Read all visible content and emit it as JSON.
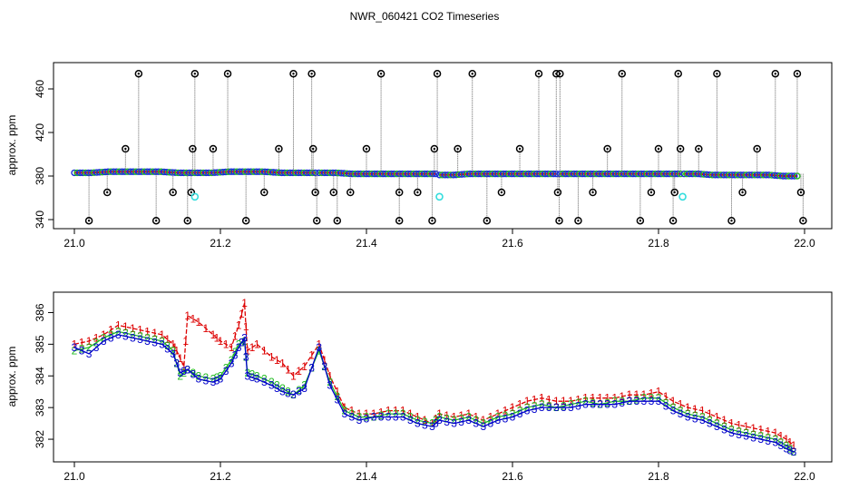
{
  "title": "NWR_060421  CO2 Timeseries",
  "chart_data": [
    {
      "type": "scatter",
      "name": "top-panel",
      "ylabel": "approx. ppm",
      "xlim": [
        21.0,
        22.0
      ],
      "ylim": [
        335,
        480
      ],
      "xticks": [
        "21.0",
        "21.2",
        "21.4",
        "21.6",
        "21.8",
        "22.0"
      ],
      "yticks": [
        "340",
        "380",
        "420",
        "460"
      ],
      "baseline_segments": [
        {
          "x0": 21.0,
          "x1": 21.33,
          "values": [
            383,
            383,
            384,
            384,
            384,
            384,
            383,
            383,
            383,
            384,
            384,
            384,
            383,
            383,
            383
          ]
        },
        {
          "x0": 21.335,
          "x1": 21.495,
          "values": [
            383,
            383,
            382,
            382,
            382,
            382,
            382,
            382
          ]
        },
        {
          "x0": 21.5,
          "x1": 21.66,
          "values": [
            381,
            381,
            382,
            382,
            382,
            382,
            382,
            382,
            382
          ]
        },
        {
          "x0": 21.665,
          "x1": 21.83,
          "values": [
            382,
            382,
            382,
            382,
            382,
            382,
            382,
            382,
            382
          ]
        },
        {
          "x0": 21.835,
          "x1": 21.99,
          "values": [
            382,
            382,
            381,
            381,
            381,
            381,
            381,
            380,
            380
          ]
        }
      ],
      "outliers": [
        [
          21.02,
          339
        ],
        [
          21.045,
          365
        ],
        [
          21.07,
          405
        ],
        [
          21.088,
          474
        ],
        [
          21.112,
          339
        ],
        [
          21.135,
          365
        ],
        [
          21.155,
          339
        ],
        [
          21.16,
          365
        ],
        [
          21.162,
          405
        ],
        [
          21.165,
          474
        ],
        [
          21.19,
          405
        ],
        [
          21.21,
          474
        ],
        [
          21.235,
          339
        ],
        [
          21.26,
          365
        ],
        [
          21.28,
          405
        ],
        [
          21.3,
          474
        ],
        [
          21.325,
          474
        ],
        [
          21.327,
          405
        ],
        [
          21.33,
          365
        ],
        [
          21.332,
          339
        ],
        [
          21.355,
          365
        ],
        [
          21.36,
          339
        ],
        [
          21.378,
          365
        ],
        [
          21.4,
          405
        ],
        [
          21.42,
          474
        ],
        [
          21.445,
          339
        ],
        [
          21.445,
          365
        ],
        [
          21.47,
          365
        ],
        [
          21.49,
          339
        ],
        [
          21.493,
          405
        ],
        [
          21.497,
          474
        ],
        [
          21.525,
          405
        ],
        [
          21.545,
          474
        ],
        [
          21.565,
          339
        ],
        [
          21.585,
          365
        ],
        [
          21.61,
          405
        ],
        [
          21.636,
          474
        ],
        [
          21.66,
          474
        ],
        [
          21.662,
          365
        ],
        [
          21.664,
          339
        ],
        [
          21.665,
          474
        ],
        [
          21.69,
          339
        ],
        [
          21.71,
          365
        ],
        [
          21.73,
          405
        ],
        [
          21.75,
          474
        ],
        [
          21.775,
          339
        ],
        [
          21.79,
          365
        ],
        [
          21.8,
          405
        ],
        [
          21.82,
          339
        ],
        [
          21.822,
          365
        ],
        [
          21.827,
          474
        ],
        [
          21.83,
          405
        ],
        [
          21.855,
          405
        ],
        [
          21.88,
          474
        ],
        [
          21.9,
          339
        ],
        [
          21.915,
          365
        ],
        [
          21.935,
          405
        ],
        [
          21.96,
          474
        ],
        [
          21.99,
          474
        ],
        [
          21.995,
          365
        ],
        [
          21.998,
          339
        ]
      ],
      "cyan_points": [
        [
          21.165,
          361
        ],
        [
          21.5,
          361
        ],
        [
          21.833,
          361
        ]
      ]
    },
    {
      "type": "line",
      "name": "bottom-panel",
      "ylabel": "approx. ppm",
      "xlim": [
        21.0,
        22.0
      ],
      "ylim": [
        381.4,
        386.5
      ],
      "xticks": [
        "21.0",
        "21.2",
        "21.4",
        "21.6",
        "21.8",
        "22.0"
      ],
      "yticks": [
        "382",
        "383",
        "384",
        "385",
        "386"
      ],
      "series": [
        {
          "name": "1",
          "color": "#dd0000",
          "x": [
            21.0,
            21.02,
            21.04,
            21.06,
            21.08,
            21.1,
            21.12,
            21.135,
            21.14,
            21.15,
            21.155,
            21.17,
            21.19,
            21.2,
            21.215,
            21.225,
            21.233,
            21.237,
            21.25,
            21.27,
            21.285,
            21.3,
            21.315,
            21.335,
            21.35,
            21.37,
            21.39,
            21.41,
            21.43,
            21.45,
            21.47,
            21.49,
            21.5,
            21.52,
            21.54,
            21.56,
            21.58,
            21.6,
            21.62,
            21.64,
            21.66,
            21.68,
            21.7,
            21.72,
            21.74,
            21.76,
            21.78,
            21.8,
            21.82,
            21.84,
            21.86,
            21.88,
            21.9,
            21.92,
            21.94,
            21.96,
            21.975,
            21.985
          ],
          "values": [
            385.0,
            385.1,
            385.3,
            385.6,
            385.5,
            385.4,
            385.3,
            385.0,
            384.8,
            384.3,
            385.9,
            385.7,
            385.3,
            385.1,
            384.9,
            385.6,
            386.3,
            384.8,
            385.0,
            384.6,
            384.4,
            384.0,
            384.3,
            385.0,
            384.0,
            383.0,
            382.8,
            382.8,
            382.9,
            382.9,
            382.7,
            382.5,
            382.8,
            382.7,
            382.8,
            382.6,
            382.8,
            383.0,
            383.2,
            383.3,
            383.2,
            383.2,
            383.3,
            383.3,
            383.3,
            383.4,
            383.4,
            383.5,
            383.2,
            383.0,
            382.9,
            382.7,
            382.5,
            382.4,
            382.3,
            382.2,
            382.0,
            381.8
          ]
        },
        {
          "name": "2",
          "color": "#22bb22",
          "x": [
            21.0,
            21.02,
            21.04,
            21.06,
            21.08,
            21.1,
            21.12,
            21.135,
            21.145,
            21.155,
            21.17,
            21.19,
            21.2,
            21.215,
            21.225,
            21.233,
            21.237,
            21.25,
            21.27,
            21.285,
            21.3,
            21.315,
            21.335,
            21.35,
            21.37,
            21.39,
            21.41,
            21.43,
            21.45,
            21.47,
            21.49,
            21.5,
            21.52,
            21.54,
            21.56,
            21.58,
            21.6,
            21.62,
            21.64,
            21.66,
            21.68,
            21.7,
            21.72,
            21.74,
            21.76,
            21.78,
            21.8,
            21.82,
            21.84,
            21.86,
            21.88,
            21.9,
            21.92,
            21.94,
            21.96,
            21.975,
            21.985
          ],
          "values": [
            384.8,
            384.9,
            385.2,
            385.4,
            385.3,
            385.2,
            385.1,
            384.8,
            384.0,
            384.2,
            384.0,
            383.9,
            384.0,
            384.5,
            385.0,
            385.1,
            384.1,
            384.0,
            383.8,
            383.6,
            383.4,
            383.7,
            384.8,
            383.8,
            382.9,
            382.7,
            382.7,
            382.8,
            382.8,
            382.6,
            382.5,
            382.7,
            382.6,
            382.7,
            382.5,
            382.7,
            382.8,
            383.0,
            383.1,
            383.0,
            383.1,
            383.2,
            383.1,
            383.2,
            383.2,
            383.3,
            383.3,
            383.0,
            382.8,
            382.7,
            382.5,
            382.3,
            382.2,
            382.1,
            382.0,
            381.8,
            381.6
          ]
        },
        {
          "name": "3",
          "color": "#0000cc",
          "x": [
            21.0,
            21.02,
            21.04,
            21.06,
            21.08,
            21.1,
            21.12,
            21.135,
            21.145,
            21.155,
            21.17,
            21.19,
            21.2,
            21.215,
            21.225,
            21.233,
            21.237,
            21.25,
            21.27,
            21.285,
            21.3,
            21.315,
            21.335,
            21.35,
            21.37,
            21.39,
            21.41,
            21.43,
            21.45,
            21.47,
            21.49,
            21.5,
            21.52,
            21.54,
            21.56,
            21.58,
            21.6,
            21.62,
            21.64,
            21.66,
            21.68,
            21.7,
            21.72,
            21.74,
            21.76,
            21.78,
            21.8,
            21.82,
            21.84,
            21.86,
            21.88,
            21.9,
            21.92,
            21.94,
            21.96,
            21.975,
            21.985
          ],
          "values": [
            384.9,
            384.7,
            385.1,
            385.3,
            385.2,
            385.1,
            385.0,
            384.7,
            384.1,
            384.2,
            383.9,
            383.8,
            383.9,
            384.4,
            384.9,
            385.2,
            384.0,
            383.9,
            383.7,
            383.5,
            383.4,
            383.6,
            384.9,
            383.7,
            382.8,
            382.6,
            382.7,
            382.7,
            382.7,
            382.5,
            382.4,
            382.6,
            382.5,
            382.6,
            382.4,
            382.6,
            382.7,
            382.9,
            383.0,
            383.0,
            383.0,
            383.1,
            383.1,
            383.1,
            383.2,
            383.2,
            383.2,
            382.9,
            382.7,
            382.6,
            382.4,
            382.2,
            382.1,
            382.0,
            381.9,
            381.7,
            381.6
          ]
        }
      ]
    }
  ]
}
